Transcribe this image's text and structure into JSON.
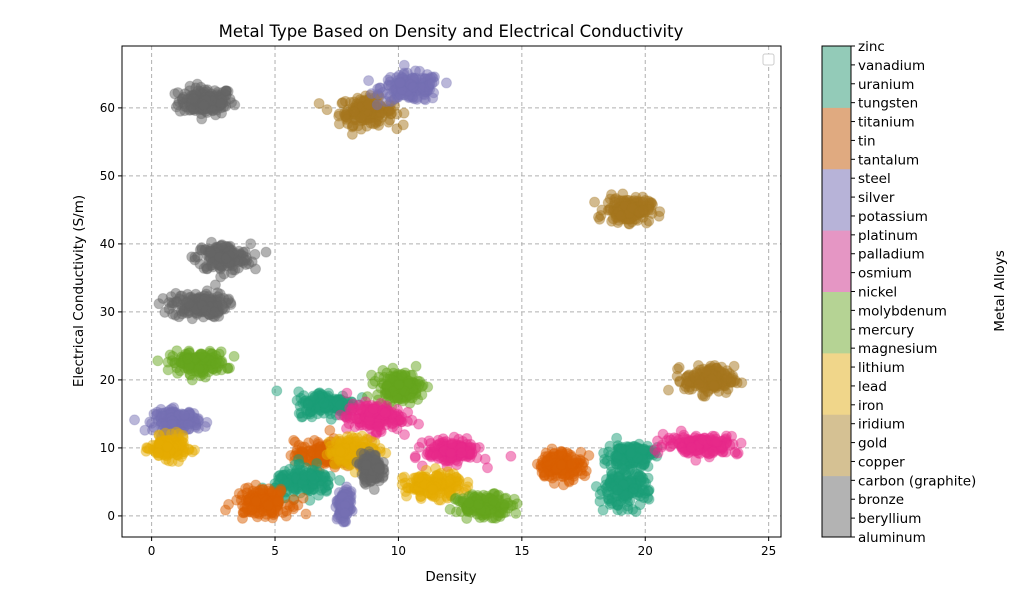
{
  "chart_data": {
    "type": "scatter",
    "title": "Metal Type Based on Density and Electrical Conductivity",
    "xlabel": "Density",
    "ylabel": "Electrical Conductivity (S/m)",
    "xlim": [
      -1.2,
      25.5
    ],
    "ylim": [
      -3.1,
      69.1
    ],
    "xticks": [
      0,
      5,
      10,
      15,
      20,
      25
    ],
    "yticks": [
      0,
      10,
      20,
      30,
      40,
      50,
      60
    ],
    "grid": true,
    "grid_style": "dashed",
    "legend": "top-right (empty)",
    "colorbar": {
      "label": "Metal Alloys",
      "categories": [
        "aluminum",
        "beryllium",
        "bronze",
        "carbon (graphite)",
        "copper",
        "gold",
        "iridium",
        "iron",
        "lead",
        "lithium",
        "magnesium",
        "mercury",
        "molybdenum",
        "nickel",
        "osmium",
        "palladium",
        "platinum",
        "potassium",
        "silver",
        "steel",
        "tantalum",
        "tin",
        "titanium",
        "tungsten",
        "uranium",
        "vanadium",
        "zinc"
      ],
      "band_colors": [
        "#b3b3b3",
        "#d5c193",
        "#f0d68a",
        "#b5d394",
        "#e596c4",
        "#b7b3d8",
        "#e0aa80",
        "#93cbb8"
      ]
    },
    "clusters": [
      {
        "color": "#666666",
        "x": 2.2,
        "y": 61,
        "sx": 0.55,
        "sy": 1.0
      },
      {
        "color": "#a6761d",
        "x": 8.7,
        "y": 59.5,
        "sx": 0.55,
        "sy": 1.0
      },
      {
        "color": "#7570b3",
        "x": 10.5,
        "y": 63,
        "sx": 0.6,
        "sy": 1.0
      },
      {
        "color": "#666666",
        "x": 2.9,
        "y": 38,
        "sx": 0.55,
        "sy": 1.0
      },
      {
        "color": "#666666",
        "x": 1.9,
        "y": 31,
        "sx": 0.55,
        "sy": 0.9
      },
      {
        "color": "#66a61e",
        "x": 1.9,
        "y": 22.5,
        "sx": 0.55,
        "sy": 0.8
      },
      {
        "color": "#7570b3",
        "x": 1.0,
        "y": 14,
        "sx": 0.45,
        "sy": 0.8
      },
      {
        "color": "#e6ab02",
        "x": 0.7,
        "y": 10,
        "sx": 0.35,
        "sy": 0.8
      },
      {
        "color": "#a6761d",
        "x": 19.3,
        "y": 45,
        "sx": 0.45,
        "sy": 0.9
      },
      {
        "color": "#a6761d",
        "x": 22.6,
        "y": 20,
        "sx": 0.5,
        "sy": 1.0
      },
      {
        "color": "#1b9e77",
        "x": 7.1,
        "y": 16.5,
        "sx": 0.6,
        "sy": 0.9
      },
      {
        "color": "#66a61e",
        "x": 10.0,
        "y": 19,
        "sx": 0.45,
        "sy": 1.1
      },
      {
        "color": "#e7298a",
        "x": 9.0,
        "y": 14.5,
        "sx": 0.55,
        "sy": 1.0
      },
      {
        "color": "#d95f02",
        "x": 7.0,
        "y": 9,
        "sx": 0.6,
        "sy": 1.0
      },
      {
        "color": "#e6ab02",
        "x": 8.2,
        "y": 9.5,
        "sx": 0.5,
        "sy": 1.0
      },
      {
        "color": "#666666",
        "x": 8.9,
        "y": 7,
        "sx": 0.2,
        "sy": 1.0
      },
      {
        "color": "#1b9e77",
        "x": 6.2,
        "y": 5,
        "sx": 0.6,
        "sy": 1.0
      },
      {
        "color": "#d95f02",
        "x": 4.5,
        "y": 2,
        "sx": 0.55,
        "sy": 1.0
      },
      {
        "color": "#7570b3",
        "x": 7.8,
        "y": 1.5,
        "sx": 0.12,
        "sy": 1.0
      },
      {
        "color": "#e7298a",
        "x": 12.2,
        "y": 9.5,
        "sx": 0.55,
        "sy": 0.8
      },
      {
        "color": "#e6ab02",
        "x": 11.4,
        "y": 4.5,
        "sx": 0.55,
        "sy": 0.9
      },
      {
        "color": "#66a61e",
        "x": 13.5,
        "y": 1.5,
        "sx": 0.55,
        "sy": 0.8
      },
      {
        "color": "#d95f02",
        "x": 16.6,
        "y": 7.5,
        "sx": 0.45,
        "sy": 1.0
      },
      {
        "color": "#1b9e77",
        "x": 19.4,
        "y": 9,
        "sx": 0.45,
        "sy": 0.8
      },
      {
        "color": "#1b9e77",
        "x": 19.1,
        "y": 4,
        "sx": 0.5,
        "sy": 1.3
      },
      {
        "color": "#e7298a",
        "x": 22.3,
        "y": 10.5,
        "sx": 0.75,
        "sy": 0.7
      }
    ]
  }
}
